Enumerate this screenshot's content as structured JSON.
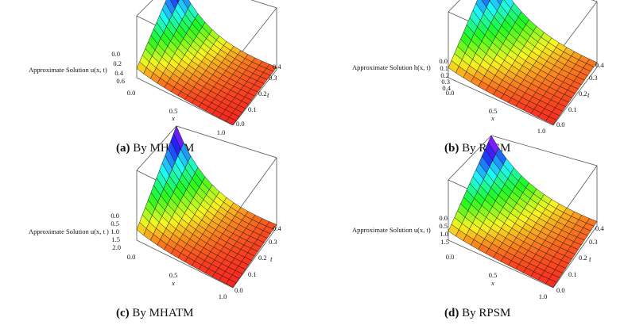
{
  "figures": [
    {
      "caption_label": "(a)",
      "caption_text": "By MHATM",
      "zlabel": "Approximate Solution  u(x, t)",
      "xlabel": "x",
      "ylabel": "t",
      "x_ticks": [
        "0.0",
        "0.5",
        "1.0"
      ],
      "t_ticks": [
        "0.0",
        "0.1",
        "0.2",
        "0.3",
        "0.4"
      ],
      "z_ticks": [
        "0.0",
        "0.2",
        "0.4",
        "0.6"
      ]
    },
    {
      "caption_label": "(b)",
      "caption_text": "By RPSM",
      "zlabel": "Approximate Solution h(x, t)",
      "xlabel": "x",
      "ylabel": "t",
      "x_ticks": [
        "0.0",
        "0.5",
        "1.0"
      ],
      "t_ticks": [
        "0.0",
        "0.1",
        "0.2",
        "0.3",
        "0.4"
      ],
      "z_ticks": [
        "0.0",
        "0.1",
        "0.2",
        "0.3",
        "0.4"
      ]
    },
    {
      "caption_label": "(c)",
      "caption_text": "By MHATM",
      "zlabel": "Approximate Solution u(x, t )",
      "xlabel": "x",
      "ylabel": "t",
      "x_ticks": [
        "0.0",
        "0.5",
        "1.0"
      ],
      "t_ticks": [
        "0.0",
        "0.1",
        "0.2",
        "0.3",
        "0.4"
      ],
      "z_ticks": [
        "0.0",
        "0.5",
        "1.0",
        "1.5",
        "2.0"
      ]
    },
    {
      "caption_label": "(d)",
      "caption_text": "By RPSM",
      "zlabel": "Approximate Solution u(x, t)",
      "xlabel": "x",
      "ylabel": "t",
      "x_ticks": [
        "0.0",
        "0.5",
        "1.0"
      ],
      "t_ticks": [
        "0.0",
        "0.1",
        "0.2",
        "0.3",
        "0.4"
      ],
      "z_ticks": [
        "0.0",
        "0.5",
        "1.0",
        "1.5"
      ]
    }
  ]
}
